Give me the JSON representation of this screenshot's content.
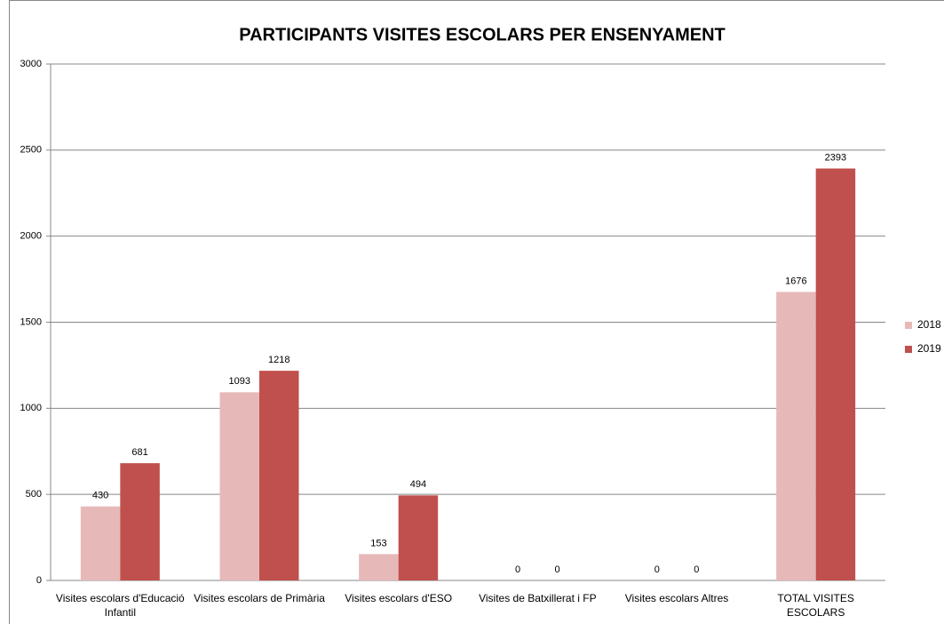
{
  "chart_data": {
    "type": "bar",
    "title": "PARTICIPANTS VISITES ESCOLARS PER ENSENYAMENT",
    "categories": [
      "Visites escolars d'Educació Infantil",
      "Visites escolars de Primària",
      "Visites escolars d'ESO",
      "Visites de Batxillerat i FP",
      "Visites escolars Altres",
      "TOTAL VISITES ESCOLARS"
    ],
    "series": [
      {
        "name": "2018",
        "color": "#e6b9b8",
        "values": [
          430,
          1093,
          153,
          0,
          0,
          1676
        ]
      },
      {
        "name": "2019",
        "color": "#c0504d",
        "values": [
          681,
          1218,
          494,
          0,
          0,
          2393
        ]
      }
    ],
    "ylim": [
      0,
      3000
    ],
    "yticks": [
      0,
      500,
      1000,
      1500,
      2000,
      2500,
      3000
    ],
    "grid": true,
    "legend": "right"
  }
}
